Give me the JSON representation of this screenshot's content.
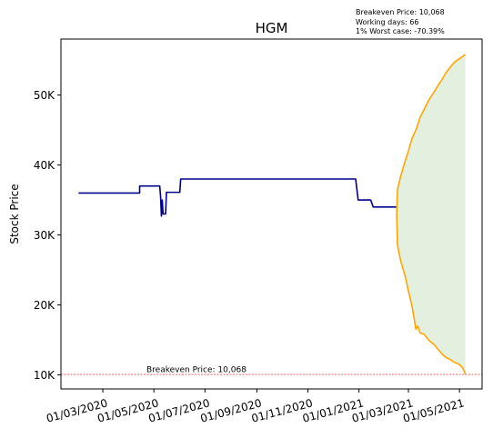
{
  "chart_data": {
    "type": "line",
    "title": "HGM",
    "ylabel": "Stock Price",
    "xlabel": "",
    "ylim": [
      8000,
      58000
    ],
    "xlim": [
      "2020-01-11",
      "2021-05-28"
    ],
    "y_ticks": [
      {
        "value": 10000,
        "label": "10K"
      },
      {
        "value": 20000,
        "label": "20K"
      },
      {
        "value": 30000,
        "label": "30K"
      },
      {
        "value": 40000,
        "label": "40K"
      },
      {
        "value": 50000,
        "label": "50K"
      }
    ],
    "x_ticks": [
      {
        "date": "2020-03-01",
        "label": "01/03/2020"
      },
      {
        "date": "2020-05-01",
        "label": "01/05/2020"
      },
      {
        "date": "2020-07-01",
        "label": "01/07/2020"
      },
      {
        "date": "2020-09-01",
        "label": "01/09/2020"
      },
      {
        "date": "2020-11-01",
        "label": "01/11/2020"
      },
      {
        "date": "2021-01-01",
        "label": "01/01/2021"
      },
      {
        "date": "2021-03-01",
        "label": "01/03/2021"
      },
      {
        "date": "2021-05-01",
        "label": "01/05/2021"
      }
    ],
    "price_history": {
      "color": "#00008b",
      "points": [
        [
          "2020-02-01",
          36000
        ],
        [
          "2020-04-14",
          36000
        ],
        [
          "2020-04-14",
          37000
        ],
        [
          "2020-05-08",
          37000
        ],
        [
          "2020-05-09",
          35500
        ],
        [
          "2020-05-10",
          32700
        ],
        [
          "2020-05-11",
          35000
        ],
        [
          "2020-05-12",
          33000
        ],
        [
          "2020-05-15",
          33000
        ],
        [
          "2020-05-16",
          36100
        ],
        [
          "2020-06-01",
          36100
        ],
        [
          "2020-06-02",
          38000
        ],
        [
          "2020-12-28",
          38000
        ],
        [
          "2020-12-31",
          35000
        ],
        [
          "2021-01-15",
          35000
        ],
        [
          "2021-01-18",
          34000
        ],
        [
          "2021-02-15",
          34000
        ]
      ]
    },
    "projection_upper": {
      "color": "#ffa500",
      "points": [
        [
          "2021-02-15",
          33000
        ],
        [
          "2021-02-16",
          36500
        ],
        [
          "2021-02-20",
          38500
        ],
        [
          "2021-02-25",
          40500
        ],
        [
          "2021-03-01",
          42000
        ],
        [
          "2021-03-05",
          43700
        ],
        [
          "2021-03-10",
          45000
        ],
        [
          "2021-03-15",
          46800
        ],
        [
          "2021-03-20",
          48000
        ],
        [
          "2021-03-25",
          49200
        ],
        [
          "2021-04-01",
          50500
        ],
        [
          "2021-04-05",
          51300
        ],
        [
          "2021-04-10",
          52200
        ],
        [
          "2021-04-15",
          53200
        ],
        [
          "2021-04-20",
          54000
        ],
        [
          "2021-04-25",
          54700
        ],
        [
          "2021-05-01",
          55200
        ],
        [
          "2021-05-08",
          55800
        ]
      ]
    },
    "projection_lower": {
      "color": "#ffa500",
      "points": [
        [
          "2021-02-15",
          33000
        ],
        [
          "2021-02-16",
          28500
        ],
        [
          "2021-02-20",
          26200
        ],
        [
          "2021-02-25",
          24200
        ],
        [
          "2021-03-01",
          22000
        ],
        [
          "2021-03-05",
          20000
        ],
        [
          "2021-03-08",
          18000
        ],
        [
          "2021-03-10",
          16500
        ],
        [
          "2021-03-12",
          17000
        ],
        [
          "2021-03-15",
          16000
        ],
        [
          "2021-03-20",
          15800
        ],
        [
          "2021-03-25",
          15000
        ],
        [
          "2021-04-01",
          14300
        ],
        [
          "2021-04-05",
          13700
        ],
        [
          "2021-04-10",
          13000
        ],
        [
          "2021-04-15",
          12500
        ],
        [
          "2021-04-20",
          12200
        ],
        [
          "2021-04-25",
          11800
        ],
        [
          "2021-05-01",
          11500
        ],
        [
          "2021-05-05",
          11000
        ],
        [
          "2021-05-08",
          10100
        ]
      ]
    },
    "fill_color": "#e3f0e0",
    "breakeven": {
      "value": 10068,
      "label": "Breakeven Price: 10,068",
      "color": "#ff0000"
    },
    "info_lines": [
      "Breakeven Price: 10,068",
      "Working days: 66",
      "1% Worst case: -70.39%"
    ],
    "grid": false,
    "legend": "none"
  }
}
